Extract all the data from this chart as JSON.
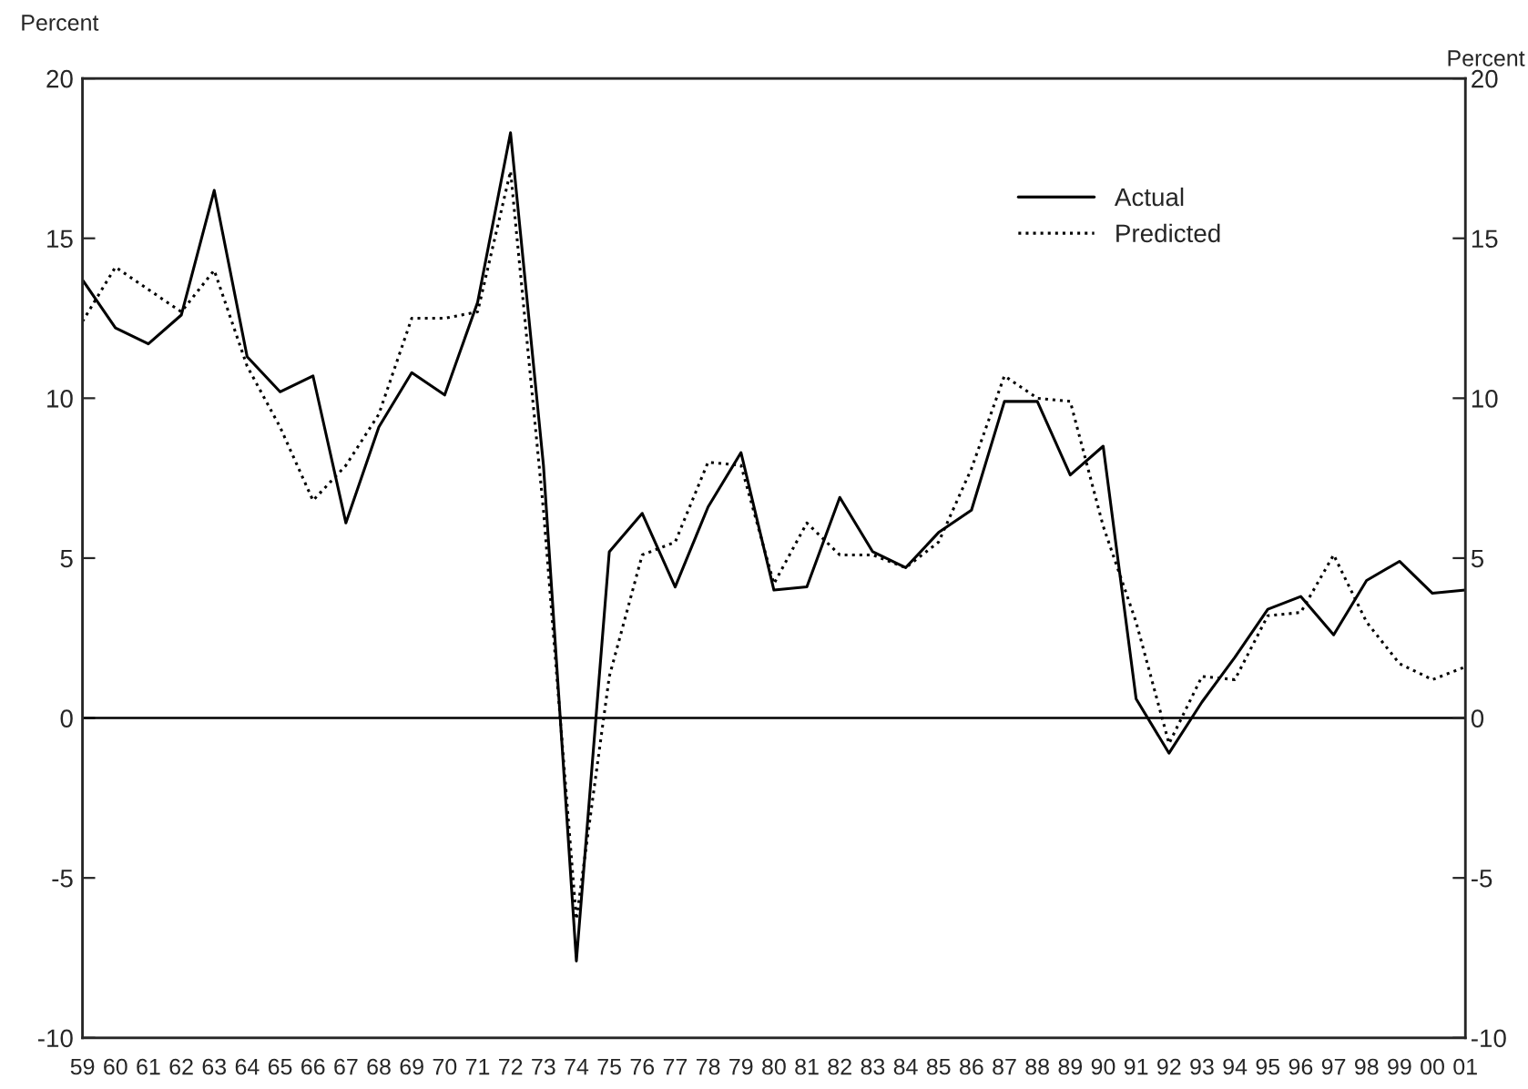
{
  "chart_data": {
    "type": "line",
    "ylabel": "Percent",
    "y2label": "Percent",
    "categories": [
      "59",
      "60",
      "61",
      "62",
      "63",
      "64",
      "65",
      "66",
      "67",
      "68",
      "69",
      "70",
      "71",
      "72",
      "73",
      "74",
      "75",
      "76",
      "77",
      "78",
      "79",
      "80",
      "81",
      "82",
      "83",
      "84",
      "85",
      "86",
      "87",
      "88",
      "89",
      "90",
      "91",
      "92",
      "93",
      "94",
      "95",
      "96",
      "97",
      "98",
      "99",
      "00",
      "01"
    ],
    "series": [
      {
        "name": "Actual",
        "color": "#000000",
        "line_style": "solid",
        "values": [
          13.7,
          12.2,
          11.7,
          12.6,
          16.5,
          11.3,
          10.2,
          10.7,
          6.1,
          9.1,
          10.8,
          10.1,
          13.0,
          18.3,
          7.9,
          -7.6,
          5.2,
          6.4,
          4.1,
          6.6,
          8.3,
          4.0,
          4.1,
          6.9,
          5.2,
          4.7,
          5.8,
          6.5,
          9.9,
          9.9,
          7.6,
          8.5,
          0.6,
          -1.1,
          0.5,
          1.9,
          3.4,
          3.8,
          2.6,
          4.3,
          4.9,
          3.9,
          4.0
        ]
      },
      {
        "name": "Predicted",
        "color": "#000000",
        "line_style": "dotted",
        "values": [
          12.4,
          14.1,
          13.4,
          12.7,
          14.0,
          11.0,
          9.1,
          6.8,
          7.9,
          9.5,
          12.5,
          12.5,
          12.7,
          17.1,
          6.5,
          -6.3,
          1.3,
          5.1,
          5.5,
          8.0,
          7.9,
          4.2,
          6.1,
          5.1,
          5.1,
          4.7,
          5.5,
          7.8,
          10.7,
          10.0,
          9.9,
          6.0,
          3.0,
          -0.8,
          1.3,
          1.2,
          3.2,
          3.3,
          5.1,
          3.0,
          1.7,
          1.2,
          1.6
        ]
      }
    ],
    "ylim": [
      -10,
      20
    ],
    "yticks": [
      -10,
      -5,
      0,
      5,
      10,
      15,
      20
    ],
    "y2lim": [
      -10,
      20
    ],
    "y2ticks": [
      -10,
      -5,
      0,
      5,
      10,
      15,
      20
    ],
    "ref_lines": [
      {
        "axis": "y",
        "value": 0,
        "color": "#000000"
      }
    ],
    "grid": false,
    "legend": "top right",
    "marker": "none"
  }
}
